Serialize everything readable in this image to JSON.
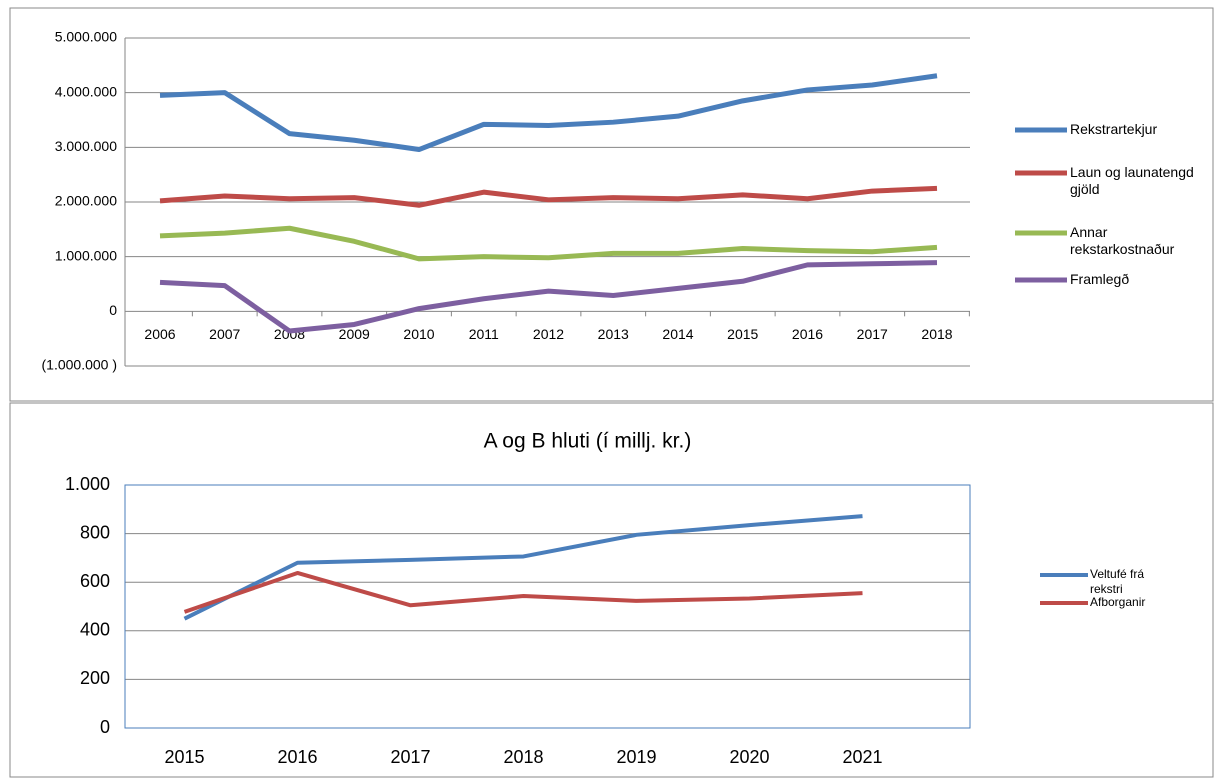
{
  "chart_data": [
    {
      "type": "line",
      "categories": [
        "2006",
        "2007",
        "2008",
        "2009",
        "2010",
        "2011",
        "2012",
        "2013",
        "2014",
        "2015",
        "2016",
        "2017",
        "2018"
      ],
      "series": [
        {
          "name": "Rekstrartekjur",
          "color": "#4a7ebb",
          "values": [
            3950000,
            4000000,
            3250000,
            3130000,
            2960000,
            3420000,
            3400000,
            3460000,
            3570000,
            3850000,
            4050000,
            4140000,
            4310000
          ]
        },
        {
          "name": "Laun og launatengd gjöld",
          "color": "#be4b48",
          "values": [
            2020000,
            2110000,
            2060000,
            2080000,
            1940000,
            2180000,
            2040000,
            2080000,
            2060000,
            2130000,
            2060000,
            2200000,
            2250000
          ]
        },
        {
          "name": "Annar rekstarkostnaður",
          "color": "#98b954",
          "values": [
            1380000,
            1430000,
            1520000,
            1280000,
            960000,
            1000000,
            980000,
            1060000,
            1060000,
            1150000,
            1110000,
            1090000,
            1170000
          ]
        },
        {
          "name": "Framlegð",
          "color": "#7d5fa0",
          "values": [
            530000,
            470000,
            -360000,
            -240000,
            50000,
            230000,
            370000,
            290000,
            420000,
            550000,
            850000,
            870000,
            890000
          ]
        }
      ],
      "ylim": [
        -1000000,
        5000000
      ],
      "yticks": [
        {
          "value": -1000000,
          "label": "(1.000.000 )"
        },
        0,
        {
          "value": 1000000,
          "label": "1.000.000"
        },
        {
          "value": 2000000,
          "label": "2.000.000"
        },
        {
          "value": 3000000,
          "label": "3.000.000"
        },
        {
          "value": 4000000,
          "label": "4.000.000"
        },
        {
          "value": 5000000,
          "label": "5.000.000"
        }
      ],
      "grid": true,
      "legend": "right"
    },
    {
      "type": "line",
      "title": "A og B hluti  (í millj. kr.)",
      "categories": [
        "2015",
        "2016",
        "2017",
        "2018",
        "2019",
        "2020",
        "2021"
      ],
      "series": [
        {
          "name": "Veltufé frá rekstri",
          "color": "#4a7ebb",
          "values": [
            450,
            680,
            692,
            706,
            795,
            835,
            872
          ]
        },
        {
          "name": "Afborganir",
          "color": "#be4b48",
          "values": [
            478,
            638,
            505,
            543,
            523,
            533,
            555
          ]
        }
      ],
      "ylim": [
        0,
        1000
      ],
      "yticks": [
        0,
        200,
        400,
        600,
        800,
        {
          "value": 1000,
          "label": "1.000"
        }
      ],
      "grid": true,
      "legend": "right"
    }
  ]
}
